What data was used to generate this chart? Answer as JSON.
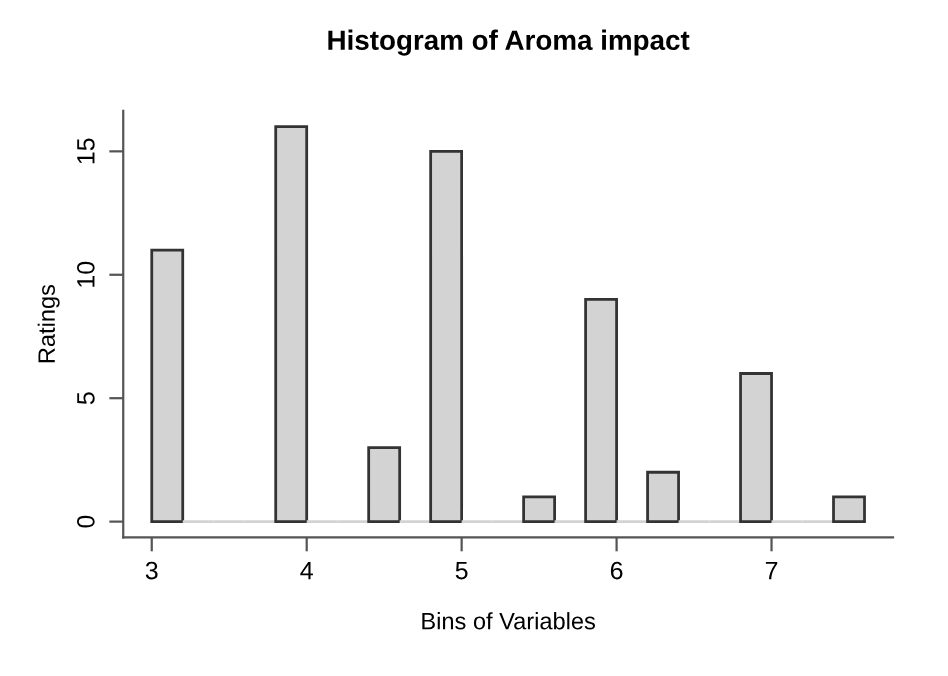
{
  "chart_data": {
    "type": "histogram",
    "title": "Histogram of Aroma impact",
    "xlabel": "Bins of Variables",
    "ylabel": "Ratings",
    "bins": [
      3.0,
      3.2,
      3.4,
      3.6,
      3.8,
      4.0,
      4.2,
      4.4,
      4.6,
      4.8,
      5.0,
      5.2,
      5.4,
      5.6,
      5.8,
      6.0,
      6.2,
      6.4,
      6.6,
      6.8,
      7.0,
      7.2,
      7.4,
      7.6
    ],
    "values": [
      11,
      0,
      0,
      0,
      16,
      0,
      0,
      3,
      0,
      15,
      0,
      0,
      1,
      0,
      9,
      0,
      2,
      0,
      0,
      6,
      0,
      0,
      1
    ],
    "color": "#d3d3d3",
    "xlim": [
      2.816,
      7.784
    ],
    "ylim": [
      -0.64,
      16.64
    ],
    "xticks": [
      3,
      4,
      5,
      6,
      7
    ],
    "yticks": [
      0,
      5,
      10,
      15
    ]
  }
}
